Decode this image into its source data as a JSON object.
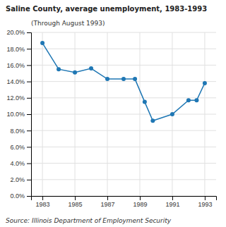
{
  "chart_data": {
    "type": "line",
    "title": "Saline County, average unemployment, 1983-1993",
    "subtitle": "(Through August 1993)",
    "source": "Source: Illinois Department of Employment Security",
    "x": [
      1983,
      1984,
      1985,
      1986,
      1987,
      1988,
      1988.7,
      1989.3,
      1989.8,
      1991,
      1992,
      1992.5,
      1993
    ],
    "values": [
      0.187,
      0.155,
      0.151,
      0.156,
      0.143,
      0.143,
      0.143,
      0.115,
      0.092,
      0.1,
      0.117,
      0.117,
      0.138
    ],
    "xlim": [
      1982.3,
      1993.7
    ],
    "ylim": [
      0.0,
      0.2
    ],
    "xticks": [
      1983,
      1985,
      1987,
      1989,
      1991,
      1993
    ],
    "yticks": [
      {
        "value": 0.0,
        "label": "0.0%"
      },
      {
        "value": 0.02,
        "label": "2.0%"
      },
      {
        "value": 0.04,
        "label": "4.0%"
      },
      {
        "value": 0.06,
        "label": "6.0%"
      },
      {
        "value": 0.08,
        "label": "8.0%"
      },
      {
        "value": 0.1,
        "label": "10.0%"
      },
      {
        "value": 0.12,
        "label": "12.0%"
      },
      {
        "value": 0.14,
        "label": "14.0%"
      },
      {
        "value": 0.16,
        "label": "16.0%"
      },
      {
        "value": 0.18,
        "label": "18.0%"
      },
      {
        "value": 0.2,
        "label": "20.0%"
      }
    ],
    "grid": true,
    "marker": "circle"
  }
}
